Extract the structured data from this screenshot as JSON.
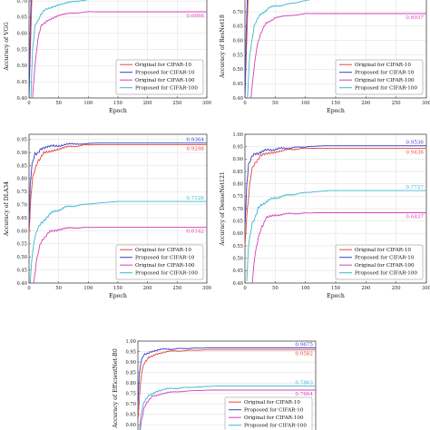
{
  "colors": {
    "orig10": "#e8453c",
    "prop10": "#3b3fc4",
    "orig100": "#d640b8",
    "prop100": "#3bb7cf",
    "grid": "#dcdcdc"
  },
  "legend_labels": [
    "Original for CIFAR-10",
    "Proposed for CIFAR-10",
    "Original for CIFAR-100",
    "Proposed for CIFAR-100"
  ],
  "chart_data": [
    {
      "type": "line",
      "xlabel": "Epoch",
      "ylabel": "Accuracy of VGG",
      "xticks": [
        "0",
        "50",
        "100",
        "150",
        "200",
        "250",
        "300"
      ],
      "yticks": [
        "0.40",
        "0.45",
        "0.50",
        "0.55",
        "0.60",
        "0.65",
        "0.70"
      ],
      "xlim": [
        0,
        300
      ],
      "ylim": [
        0.4,
        0.72
      ],
      "ytick_values": [
        0.4,
        0.45,
        0.5,
        0.55,
        0.6,
        0.65,
        0.7
      ],
      "grid": true,
      "legend": "bottom-right",
      "annotations": [
        {
          "text": "0.7149",
          "y": 0.7149,
          "series": "prop100"
        },
        {
          "text": "0.6666",
          "y": 0.6666,
          "series": "orig100"
        }
      ],
      "series": [
        {
          "name": "Original for CIFAR-10",
          "key": "orig10",
          "points": [
            [
              0,
              0.4
            ],
            [
              3,
              0.6
            ],
            [
              6,
              0.78
            ]
          ]
        },
        {
          "name": "Proposed for CIFAR-10",
          "key": "prop10",
          "points": [
            [
              0,
              0.4
            ],
            [
              2,
              0.62
            ],
            [
              5,
              0.8
            ]
          ]
        },
        {
          "name": "Original for CIFAR-100",
          "key": "orig100",
          "points": [
            [
              6,
              0.4
            ],
            [
              10,
              0.5
            ],
            [
              15,
              0.58
            ],
            [
              20,
              0.62
            ],
            [
              30,
              0.64
            ],
            [
              50,
              0.655
            ],
            [
              70,
              0.662
            ],
            [
              100,
              0.6666
            ],
            [
              300,
              0.6666
            ]
          ]
        },
        {
          "name": "Proposed for CIFAR-100",
          "key": "prop100",
          "points": [
            [
              3,
              0.4
            ],
            [
              6,
              0.55
            ],
            [
              10,
              0.62
            ],
            [
              20,
              0.66
            ],
            [
              30,
              0.675
            ],
            [
              50,
              0.69
            ],
            [
              100,
              0.705
            ],
            [
              150,
              0.7149
            ],
            [
              300,
              0.7149
            ]
          ]
        }
      ]
    },
    {
      "type": "line",
      "xlabel": "Epoch",
      "ylabel": "Accuracy of ResNet18",
      "xticks": [
        "0",
        "50",
        "100",
        "150",
        "200",
        "250",
        "300"
      ],
      "yticks": [
        "0.40",
        "0.45",
        "0.50",
        "0.55",
        "0.60",
        "0.65",
        "0.70"
      ],
      "xlim": [
        0,
        300
      ],
      "ylim": [
        0.4,
        0.76
      ],
      "ytick_values": [
        0.4,
        0.45,
        0.5,
        0.55,
        0.6,
        0.65,
        0.7
      ],
      "grid": true,
      "legend": "bottom-right",
      "annotations": [
        {
          "text": "0.7476",
          "y": 0.7476,
          "series": "prop100"
        },
        {
          "text": "0.6937",
          "y": 0.6937,
          "series": "orig100"
        }
      ],
      "series": [
        {
          "name": "Original for CIFAR-10",
          "key": "orig10",
          "points": [
            [
              0,
              0.4
            ],
            [
              3,
              0.6
            ],
            [
              6,
              0.8
            ]
          ]
        },
        {
          "name": "Proposed for CIFAR-10",
          "key": "prop10",
          "points": [
            [
              0,
              0.4
            ],
            [
              2,
              0.62
            ],
            [
              5,
              0.82
            ]
          ]
        },
        {
          "name": "Original for CIFAR-100",
          "key": "orig100",
          "points": [
            [
              10,
              0.4
            ],
            [
              15,
              0.5
            ],
            [
              20,
              0.58
            ],
            [
              25,
              0.62
            ],
            [
              35,
              0.66
            ],
            [
              50,
              0.68
            ],
            [
              100,
              0.6937
            ],
            [
              300,
              0.6937
            ]
          ]
        },
        {
          "name": "Proposed for CIFAR-100",
          "key": "prop100",
          "points": [
            [
              4,
              0.4
            ],
            [
              8,
              0.55
            ],
            [
              15,
              0.65
            ],
            [
              25,
              0.69
            ],
            [
              40,
              0.715
            ],
            [
              80,
              0.73
            ],
            [
              120,
              0.7476
            ],
            [
              300,
              0.7476
            ]
          ]
        }
      ]
    },
    {
      "type": "line",
      "xlabel": "Epoch",
      "ylabel": "Accuracy of DLA34",
      "xticks": [
        "0",
        "50",
        "100",
        "150",
        "200",
        "250",
        "300"
      ],
      "yticks": [
        "0.40",
        "0.45",
        "0.50",
        "0.55",
        "0.60",
        "0.65",
        "0.70",
        "0.75",
        "0.80",
        "0.85",
        "0.90",
        "0.95"
      ],
      "xlim": [
        0,
        300
      ],
      "ylim": [
        0.4,
        0.97
      ],
      "ytick_values": [
        0.4,
        0.45,
        0.5,
        0.55,
        0.6,
        0.65,
        0.7,
        0.75,
        0.8,
        0.85,
        0.9,
        0.95
      ],
      "grid": true,
      "legend": "bottom-right",
      "annotations": [
        {
          "text": "0.9364",
          "y": 0.9364,
          "series": "prop10"
        },
        {
          "text": "0.9298",
          "y": 0.9298,
          "series": "orig10"
        },
        {
          "text": "0.7126",
          "y": 0.7126,
          "series": "prop100"
        },
        {
          "text": "0.6142",
          "y": 0.6142,
          "series": "orig100"
        }
      ],
      "series": [
        {
          "name": "Original for CIFAR-10",
          "key": "orig10",
          "points": [
            [
              0,
              0.58
            ],
            [
              3,
              0.72
            ],
            [
              6,
              0.8
            ],
            [
              10,
              0.84
            ],
            [
              15,
              0.87
            ],
            [
              25,
              0.895
            ],
            [
              40,
              0.91
            ],
            [
              60,
              0.92
            ],
            [
              100,
              0.9298
            ],
            [
              300,
              0.9298
            ]
          ]
        },
        {
          "name": "Proposed for CIFAR-10",
          "key": "prop10",
          "points": [
            [
              0,
              0.62
            ],
            [
              2,
              0.78
            ],
            [
              5,
              0.86
            ],
            [
              10,
              0.895
            ],
            [
              20,
              0.91
            ],
            [
              40,
              0.925
            ],
            [
              70,
              0.932
            ],
            [
              120,
              0.9364
            ],
            [
              300,
              0.9364
            ]
          ]
        },
        {
          "name": "Original for CIFAR-100",
          "key": "orig100",
          "points": [
            [
              8,
              0.4
            ],
            [
              12,
              0.48
            ],
            [
              18,
              0.54
            ],
            [
              25,
              0.575
            ],
            [
              35,
              0.595
            ],
            [
              50,
              0.607
            ],
            [
              80,
              0.612
            ],
            [
              120,
              0.6142
            ],
            [
              300,
              0.6142
            ]
          ]
        },
        {
          "name": "Proposed for CIFAR-100",
          "key": "prop100",
          "points": [
            [
              2,
              0.4
            ],
            [
              5,
              0.5
            ],
            [
              10,
              0.58
            ],
            [
              20,
              0.63
            ],
            [
              35,
              0.665
            ],
            [
              60,
              0.69
            ],
            [
              100,
              0.703
            ],
            [
              150,
              0.7126
            ],
            [
              300,
              0.7126
            ]
          ]
        }
      ]
    },
    {
      "type": "line",
      "xlabel": "Epoch",
      "ylabel": "Accuracy of DenseNet121",
      "xticks": [
        "0",
        "50",
        "100",
        "150",
        "200",
        "250",
        "300"
      ],
      "yticks": [
        "0.40",
        "0.45",
        "0.50",
        "0.55",
        "0.60",
        "0.65",
        "0.70",
        "0.75",
        "0.80",
        "0.85",
        "0.90",
        "0.95",
        "1.00"
      ],
      "xlim": [
        0,
        300
      ],
      "ylim": [
        0.4,
        1.0
      ],
      "ytick_values": [
        0.4,
        0.45,
        0.5,
        0.55,
        0.6,
        0.65,
        0.7,
        0.75,
        0.8,
        0.85,
        0.9,
        0.95,
        1.0
      ],
      "grid": true,
      "legend": "bottom-right",
      "annotations": [
        {
          "text": "0.9536",
          "y": 0.9536,
          "series": "prop10"
        },
        {
          "text": "0.9436",
          "y": 0.9436,
          "series": "orig10"
        },
        {
          "text": "0.7727",
          "y": 0.7727,
          "series": "prop100"
        },
        {
          "text": "0.6837",
          "y": 0.6837,
          "series": "orig100"
        }
      ],
      "series": [
        {
          "name": "Original for CIFAR-10",
          "key": "orig10",
          "points": [
            [
              0,
              0.55
            ],
            [
              4,
              0.7
            ],
            [
              8,
              0.8
            ],
            [
              12,
              0.86
            ],
            [
              18,
              0.89
            ],
            [
              25,
              0.91
            ],
            [
              40,
              0.925
            ],
            [
              60,
              0.935
            ],
            [
              100,
              0.9436
            ],
            [
              300,
              0.9436
            ]
          ]
        },
        {
          "name": "Proposed for CIFAR-10",
          "key": "prop10",
          "points": [
            [
              0,
              0.62
            ],
            [
              3,
              0.8
            ],
            [
              6,
              0.88
            ],
            [
              12,
              0.91
            ],
            [
              25,
              0.93
            ],
            [
              50,
              0.94
            ],
            [
              90,
              0.948
            ],
            [
              130,
              0.9536
            ],
            [
              300,
              0.9536
            ]
          ]
        },
        {
          "name": "Original for CIFAR-100",
          "key": "orig100",
          "points": [
            [
              12,
              0.4
            ],
            [
              16,
              0.5
            ],
            [
              22,
              0.58
            ],
            [
              28,
              0.63
            ],
            [
              35,
              0.66
            ],
            [
              50,
              0.675
            ],
            [
              80,
              0.68
            ],
            [
              120,
              0.6837
            ],
            [
              300,
              0.6837
            ]
          ]
        },
        {
          "name": "Proposed for CIFAR-100",
          "key": "prop100",
          "points": [
            [
              3,
              0.4
            ],
            [
              6,
              0.55
            ],
            [
              12,
              0.64
            ],
            [
              22,
              0.7
            ],
            [
              35,
              0.73
            ],
            [
              60,
              0.75
            ],
            [
              100,
              0.765
            ],
            [
              140,
              0.7727
            ],
            [
              300,
              0.7727
            ]
          ]
        }
      ]
    },
    {
      "type": "line",
      "xlabel": "",
      "ylabel": "Accuracy of EfficientNet-B0",
      "xticks": [],
      "yticks": [
        "0.55",
        "0.60",
        "0.65",
        "0.70",
        "0.75",
        "0.80",
        "0.85",
        "0.90",
        "0.95",
        "1.00"
      ],
      "xlim": [
        0,
        300
      ],
      "ylim": [
        0.55,
        1.0
      ],
      "ytick_values": [
        0.55,
        0.6,
        0.65,
        0.7,
        0.75,
        0.8,
        0.85,
        0.9,
        0.95,
        1.0
      ],
      "grid": true,
      "legend": "bottom-right",
      "annotations": [
        {
          "text": "0.9675",
          "y": 0.9675,
          "series": "prop10"
        },
        {
          "text": "0.9582",
          "y": 0.9582,
          "series": "orig10"
        },
        {
          "text": "0.7863",
          "y": 0.7863,
          "series": "prop100"
        },
        {
          "text": "0.7664",
          "y": 0.7664,
          "series": "orig100"
        }
      ],
      "series": [
        {
          "name": "Original for CIFAR-10",
          "key": "orig10",
          "points": [
            [
              0,
              0.62
            ],
            [
              3,
              0.75
            ],
            [
              6,
              0.84
            ],
            [
              10,
              0.89
            ],
            [
              18,
              0.92
            ],
            [
              30,
              0.94
            ],
            [
              50,
              0.95
            ],
            [
              80,
              0.955
            ],
            [
              120,
              0.9582
            ],
            [
              300,
              0.9582
            ]
          ]
        },
        {
          "name": "Proposed for CIFAR-10",
          "key": "prop10",
          "points": [
            [
              0,
              0.68
            ],
            [
              2,
              0.82
            ],
            [
              5,
              0.9
            ],
            [
              10,
              0.93
            ],
            [
              20,
              0.95
            ],
            [
              40,
              0.96
            ],
            [
              80,
              0.965
            ],
            [
              120,
              0.9675
            ],
            [
              300,
              0.9675
            ]
          ]
        },
        {
          "name": "Original for CIFAR-100",
          "key": "orig100",
          "points": [
            [
              3,
              0.55
            ],
            [
              6,
              0.62
            ],
            [
              10,
              0.68
            ],
            [
              15,
              0.71
            ],
            [
              25,
              0.735
            ],
            [
              40,
              0.75
            ],
            [
              70,
              0.76
            ],
            [
              120,
              0.7664
            ],
            [
              300,
              0.7664
            ]
          ]
        },
        {
          "name": "Proposed for CIFAR-100",
          "key": "prop100",
          "points": [
            [
              2,
              0.55
            ],
            [
              5,
              0.65
            ],
            [
              10,
              0.71
            ],
            [
              18,
              0.74
            ],
            [
              30,
              0.76
            ],
            [
              50,
              0.772
            ],
            [
              90,
              0.78
            ],
            [
              140,
              0.7863
            ],
            [
              300,
              0.7863
            ]
          ]
        }
      ]
    }
  ]
}
